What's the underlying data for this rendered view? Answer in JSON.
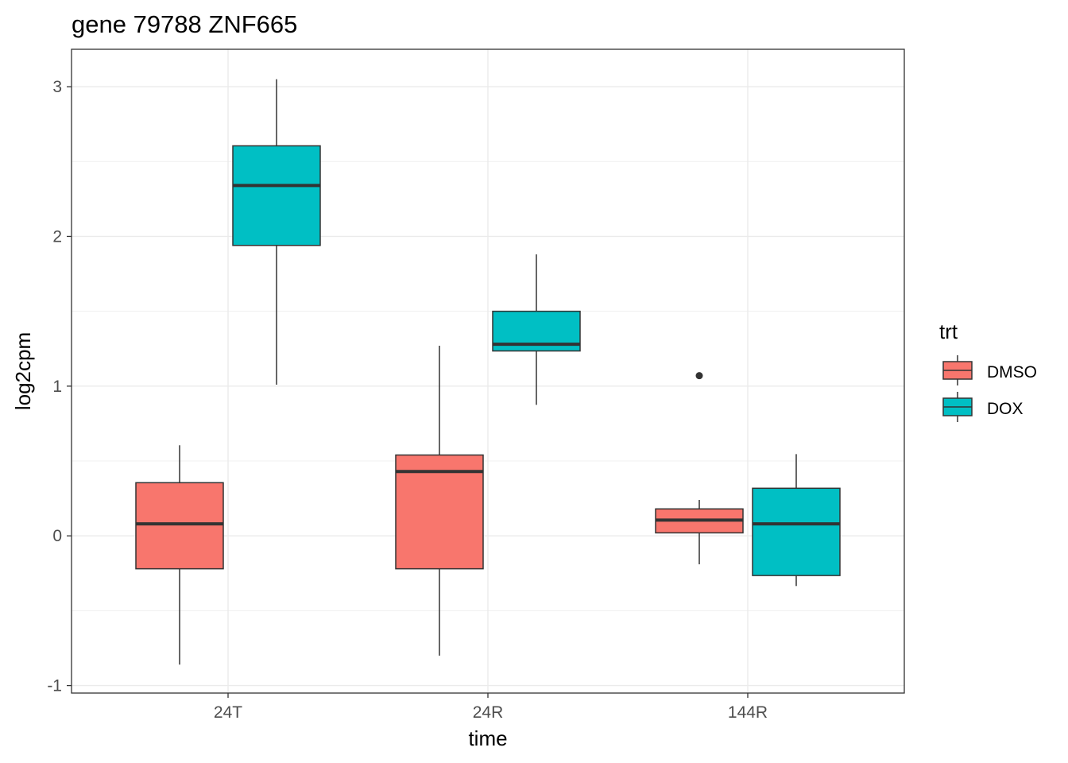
{
  "chart_data": {
    "type": "boxplot",
    "title": "gene 79788 ZNF665",
    "xlabel": "time",
    "ylabel": "log2cpm",
    "ylim": [
      -1.05,
      3.25
    ],
    "yticks": [
      -1,
      0,
      1,
      2,
      3
    ],
    "ytick_labels": [
      "-1",
      "0",
      "1",
      "2",
      "3"
    ],
    "categories": [
      "24T",
      "24R",
      "144R"
    ],
    "grid": true,
    "legend": {
      "title": "trt",
      "position": "right",
      "entries": [
        "DMSO",
        "DOX"
      ]
    },
    "colors": {
      "DMSO": "#F8766D",
      "DOX": "#00BFC4",
      "line": "#333333"
    },
    "series": [
      {
        "name": "DMSO",
        "boxes": [
          {
            "category": "24T",
            "min": -0.86,
            "q1": -0.22,
            "median": 0.08,
            "q3": 0.355,
            "max": 0.605,
            "outliers": []
          },
          {
            "category": "24R",
            "min": -0.8,
            "q1": -0.22,
            "median": 0.43,
            "q3": 0.54,
            "max": 1.27,
            "outliers": []
          },
          {
            "category": "144R",
            "min": -0.19,
            "q1": 0.02,
            "median": 0.105,
            "q3": 0.18,
            "max": 0.24,
            "outliers": [
              1.07
            ]
          }
        ]
      },
      {
        "name": "DOX",
        "boxes": [
          {
            "category": "24T",
            "min": 1.01,
            "q1": 1.94,
            "median": 2.34,
            "q3": 2.605,
            "max": 3.05,
            "outliers": []
          },
          {
            "category": "24R",
            "min": 0.875,
            "q1": 1.235,
            "median": 1.28,
            "q3": 1.5,
            "max": 1.88,
            "outliers": []
          },
          {
            "category": "144R",
            "min": -0.335,
            "q1": -0.265,
            "median": 0.08,
            "q3": 0.318,
            "max": 0.546,
            "outliers": []
          }
        ]
      }
    ]
  }
}
